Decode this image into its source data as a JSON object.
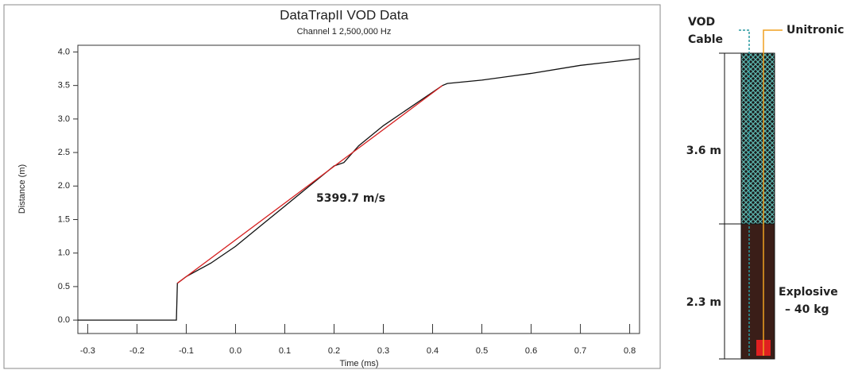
{
  "chart_data": {
    "type": "line",
    "title": "DataTrapII VOD Data",
    "subtitle": "Channel 1 2,500,000 Hz",
    "x_label": "Time (ms)",
    "y_label": "Distance (m)",
    "annotation": "5399.7 m/s",
    "xlim": [
      -0.32,
      0.82
    ],
    "ylim": [
      -0.2,
      4.1
    ],
    "xticks": [
      -0.3,
      -0.2,
      -0.1,
      {
        "value": 0,
        "label": "0.0"
      },
      0.1,
      0.2,
      0.3,
      0.4,
      0.5,
      0.6,
      0.7,
      0.8
    ],
    "yticks": [
      {
        "value": 0,
        "label": "0.0"
      },
      0.5,
      {
        "value": 1,
        "label": "1.0"
      },
      1.5,
      {
        "value": 2,
        "label": "2.0"
      },
      2.5,
      {
        "value": 3,
        "label": "3.0"
      },
      3.5,
      {
        "value": 4,
        "label": "4.0"
      }
    ],
    "series": [
      {
        "color": "#111111",
        "x": [
          -0.32,
          -0.12,
          -0.118,
          -0.1,
          -0.05,
          0.0,
          0.05,
          0.1,
          0.15,
          0.2,
          0.22,
          0.25,
          0.3,
          0.35,
          0.42,
          0.43,
          0.5,
          0.6,
          0.7,
          0.82
        ],
        "values": [
          0,
          0,
          0.55,
          0.65,
          0.85,
          1.1,
          1.4,
          1.7,
          2.0,
          2.3,
          2.35,
          2.6,
          2.9,
          3.15,
          3.5,
          3.53,
          3.58,
          3.68,
          3.8,
          3.9
        ]
      },
      {
        "color": "#d62020",
        "x": [
          -0.118,
          0.42
        ],
        "values": [
          0.55,
          3.5
        ]
      }
    ]
  },
  "diagram": {
    "cable_label": [
      "VOD",
      "Cable"
    ],
    "wire_label": "Unitronic",
    "upper_length": "3.6 m",
    "lower_length": "2.3 m",
    "charge_label": [
      "Explosive",
      "– 40 kg"
    ]
  }
}
